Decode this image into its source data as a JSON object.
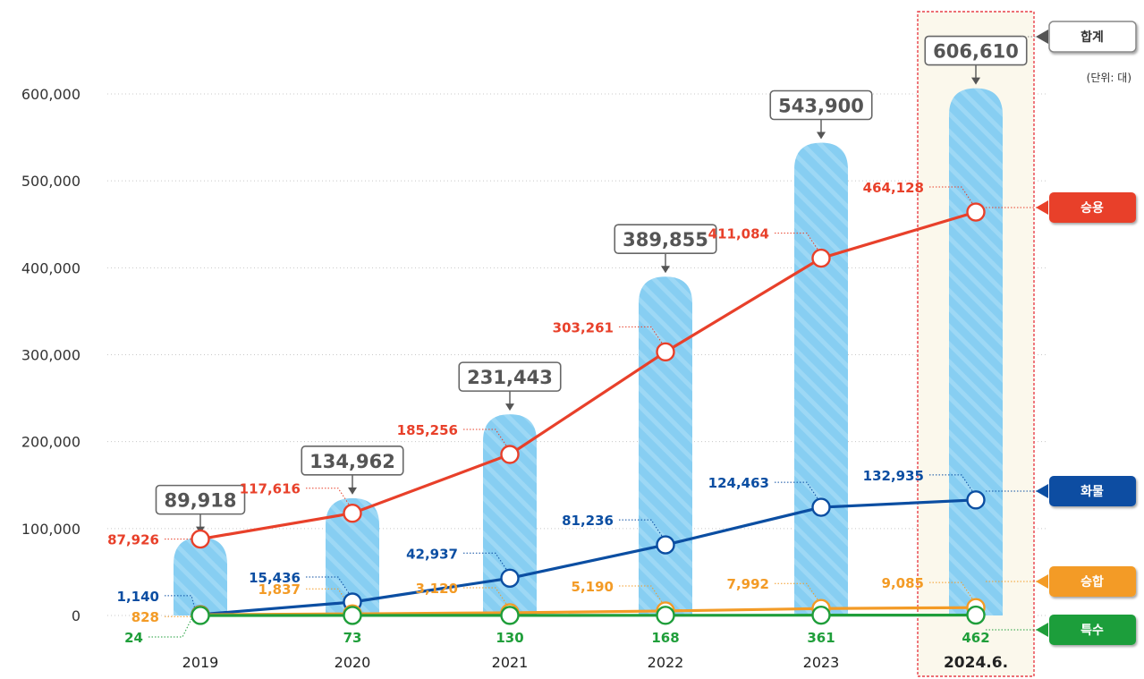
{
  "chart_data": {
    "type": "bar",
    "title": "",
    "xlabel": "",
    "ylabel": "",
    "unit_label": "(단위: 대)",
    "categories": [
      "2019",
      "2020",
      "2021",
      "2022",
      "2023",
      "2024.6."
    ],
    "highlight_category": "2024.6.",
    "ylim": [
      0,
      600000
    ],
    "yticks": [
      0,
      100000,
      200000,
      300000,
      400000,
      500000,
      600000
    ],
    "ytick_labels": [
      "0",
      "100,000",
      "200,000",
      "300,000",
      "400,000",
      "500,000",
      "600,000"
    ],
    "grid": true,
    "total": {
      "name": "합계",
      "values": [
        89918,
        134962,
        231443,
        389855,
        543900,
        606610
      ],
      "labels": [
        "89,918",
        "134,962",
        "231,443",
        "389,855",
        "543,900",
        "606,610"
      ],
      "color": "#87CEF2"
    },
    "series": [
      {
        "name": "승용",
        "color": "#E8402A",
        "values": [
          87926,
          117616,
          185256,
          303261,
          411084,
          464128
        ],
        "labels": [
          "87,926",
          "117,616",
          "185,256",
          "303,261",
          "411,084",
          "464,128"
        ]
      },
      {
        "name": "화물",
        "color": "#0B4EA2",
        "values": [
          1140,
          15436,
          42937,
          81236,
          124463,
          132935
        ],
        "labels": [
          "1,140",
          "15,436",
          "42,937",
          "81,236",
          "124,463",
          "132,935"
        ]
      },
      {
        "name": "승합",
        "color": "#F39B26",
        "values": [
          828,
          1837,
          3120,
          5190,
          7992,
          9085
        ],
        "labels": [
          "828",
          "1,837",
          "3,120",
          "5,190",
          "7,992",
          "9,085"
        ]
      },
      {
        "name": "특수",
        "color": "#1F9E3A",
        "values": [
          24,
          73,
          130,
          168,
          361,
          462
        ],
        "labels": [
          "24",
          "73",
          "130",
          "168",
          "361",
          "462"
        ]
      }
    ]
  }
}
